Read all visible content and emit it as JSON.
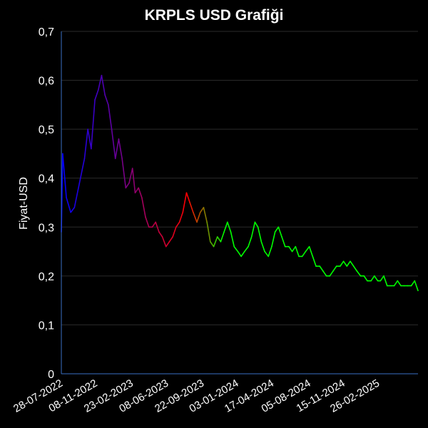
{
  "chart_data": {
    "type": "line",
    "title": "KRPLS USD Grafiği",
    "xlabel": "",
    "ylabel": "Fiyat-USD",
    "ylim": [
      0,
      0.7
    ],
    "yticks": [
      "0",
      "0,1",
      "0,2",
      "0,3",
      "0,4",
      "0,5",
      "0,6",
      "0,7"
    ],
    "xticks": [
      "28-07-2022",
      "08-11-2022",
      "23-02-2023",
      "08-06-2023",
      "22-09-2023",
      "03-01-2024",
      "17-04-2024",
      "05-08-2024",
      "15-11-2024",
      "26-02-2025"
    ],
    "grid": true,
    "legend": "none",
    "colors": {
      "start": "#0000ff",
      "middle": "#ff0000",
      "end": "#00ff00"
    },
    "series": [
      {
        "x": [
          "2022-07-28",
          "2022-08-01",
          "2022-08-12",
          "2022-08-25",
          "2022-09-05",
          "2022-09-20",
          "2022-10-05",
          "2022-10-15",
          "2022-10-25",
          "2022-11-05",
          "2022-11-15",
          "2022-11-25",
          "2022-12-05",
          "2022-12-15",
          "2022-12-25",
          "2023-01-05",
          "2023-01-15",
          "2023-01-25",
          "2023-02-05",
          "2023-02-15",
          "2023-02-25",
          "2023-03-05",
          "2023-03-15",
          "2023-03-25",
          "2023-04-05",
          "2023-04-15",
          "2023-04-25",
          "2023-05-05",
          "2023-05-15",
          "2023-05-25",
          "2023-06-05",
          "2023-06-15",
          "2023-06-25",
          "2023-07-05",
          "2023-07-15",
          "2023-07-25",
          "2023-08-05",
          "2023-08-15",
          "2023-08-25",
          "2023-09-05",
          "2023-09-15",
          "2023-09-25",
          "2023-10-05",
          "2023-10-15",
          "2023-10-25",
          "2023-11-05",
          "2023-11-15",
          "2023-11-25",
          "2023-12-05",
          "2023-12-15",
          "2023-12-25",
          "2024-01-05",
          "2024-01-15",
          "2024-01-25",
          "2024-02-05",
          "2024-02-15",
          "2024-02-25",
          "2024-03-05",
          "2024-03-15",
          "2024-03-25",
          "2024-04-05",
          "2024-04-15",
          "2024-04-25",
          "2024-05-05",
          "2024-05-15",
          "2024-05-25",
          "2024-06-05",
          "2024-06-15",
          "2024-06-25",
          "2024-07-05",
          "2024-07-15",
          "2024-07-25",
          "2024-08-05",
          "2024-08-15",
          "2024-08-25",
          "2024-09-05",
          "2024-09-15",
          "2024-09-25",
          "2024-10-05",
          "2024-10-15",
          "2024-10-25",
          "2024-11-05",
          "2024-11-15",
          "2024-11-25",
          "2024-12-05",
          "2024-12-15",
          "2024-12-25",
          "2025-01-05",
          "2025-01-15",
          "2025-01-25",
          "2025-02-05",
          "2025-02-15",
          "2025-02-25",
          "2025-03-05",
          "2025-03-15",
          "2025-03-25",
          "2025-04-05",
          "2025-04-15",
          "2025-04-25",
          "2025-05-05",
          "2025-05-15",
          "2025-05-25",
          "2025-06-05",
          "2025-06-15",
          "2025-06-25"
        ],
        "values": [
          0.29,
          0.45,
          0.36,
          0.33,
          0.34,
          0.39,
          0.44,
          0.5,
          0.46,
          0.56,
          0.58,
          0.61,
          0.57,
          0.55,
          0.5,
          0.44,
          0.48,
          0.44,
          0.38,
          0.39,
          0.42,
          0.37,
          0.38,
          0.36,
          0.32,
          0.3,
          0.3,
          0.31,
          0.29,
          0.28,
          0.26,
          0.27,
          0.28,
          0.3,
          0.31,
          0.33,
          0.37,
          0.35,
          0.33,
          0.31,
          0.33,
          0.34,
          0.31,
          0.27,
          0.26,
          0.28,
          0.27,
          0.29,
          0.31,
          0.29,
          0.26,
          0.25,
          0.24,
          0.25,
          0.26,
          0.28,
          0.31,
          0.3,
          0.27,
          0.25,
          0.24,
          0.26,
          0.29,
          0.3,
          0.28,
          0.26,
          0.26,
          0.25,
          0.26,
          0.24,
          0.24,
          0.25,
          0.26,
          0.24,
          0.22,
          0.22,
          0.21,
          0.2,
          0.2,
          0.21,
          0.22,
          0.22,
          0.23,
          0.22,
          0.23,
          0.22,
          0.21,
          0.2,
          0.2,
          0.19,
          0.19,
          0.2,
          0.19,
          0.19,
          0.2,
          0.18,
          0.18,
          0.18,
          0.19,
          0.18,
          0.18,
          0.18,
          0.18,
          0.19,
          0.17
        ]
      }
    ]
  }
}
